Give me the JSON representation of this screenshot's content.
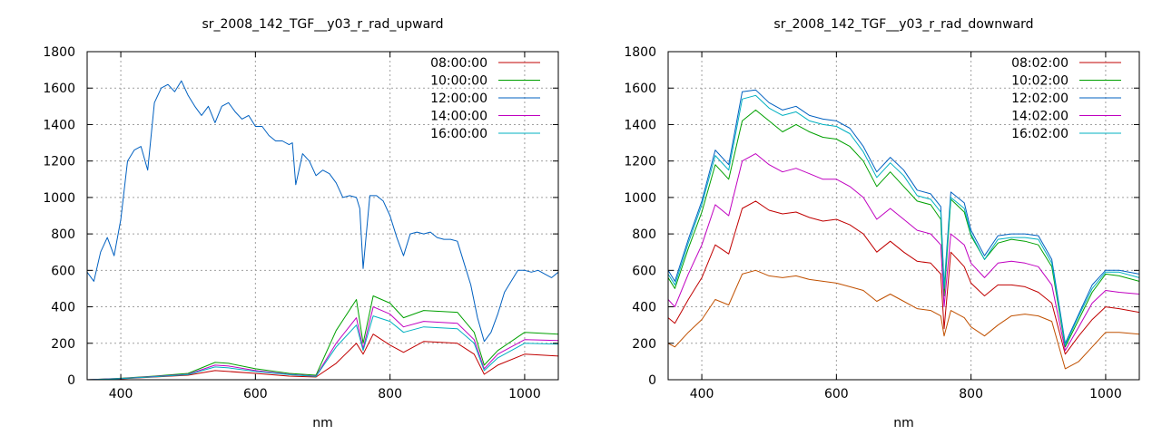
{
  "colors": {
    "red": "#c00000",
    "green": "#00a000",
    "blue": "#0060c0",
    "magenta": "#c000c0",
    "cyan": "#00b0c0",
    "orange": "#c05000"
  },
  "chart_data": [
    {
      "type": "line",
      "title": "sr_2008_142_TGF__y03_r_rad_upward",
      "xlabel": "nm",
      "ylabel": "",
      "xlim": [
        350,
        1050
      ],
      "ylim": [
        0,
        1800
      ],
      "xticks": [
        400,
        600,
        800,
        1000
      ],
      "yticks": [
        0,
        200,
        400,
        600,
        800,
        1000,
        1200,
        1400,
        1600,
        1800
      ],
      "grid": true,
      "legend": "top-right",
      "series": [
        {
          "name": "08:00:00",
          "color": "#c00000",
          "x": [
            350,
            400,
            450,
            500,
            540,
            560,
            600,
            650,
            690,
            720,
            750,
            760,
            775,
            800,
            820,
            850,
            900,
            925,
            940,
            960,
            1000,
            1050
          ],
          "y": [
            0,
            5,
            15,
            25,
            50,
            45,
            35,
            20,
            15,
            90,
            200,
            140,
            250,
            190,
            150,
            210,
            200,
            140,
            30,
            80,
            140,
            130
          ]
        },
        {
          "name": "10:00:00",
          "color": "#00a000",
          "x": [
            350,
            400,
            450,
            500,
            540,
            560,
            600,
            650,
            690,
            720,
            750,
            760,
            775,
            800,
            820,
            850,
            900,
            925,
            940,
            960,
            1000,
            1050
          ],
          "y": [
            0,
            8,
            20,
            35,
            95,
            90,
            60,
            35,
            25,
            270,
            440,
            200,
            460,
            420,
            340,
            380,
            370,
            260,
            80,
            160,
            260,
            250
          ]
        },
        {
          "name": "12:00:00",
          "color": "#0060c0",
          "x": [
            350,
            360,
            370,
            380,
            390,
            400,
            410,
            420,
            430,
            440,
            450,
            460,
            470,
            480,
            490,
            500,
            510,
            520,
            530,
            540,
            550,
            560,
            570,
            580,
            590,
            600,
            610,
            620,
            630,
            640,
            650,
            655,
            660,
            670,
            680,
            690,
            700,
            710,
            720,
            730,
            740,
            750,
            755,
            760,
            770,
            780,
            790,
            800,
            810,
            820,
            830,
            840,
            850,
            860,
            870,
            880,
            890,
            900,
            910,
            920,
            930,
            940,
            950,
            960,
            970,
            980,
            990,
            1000,
            1010,
            1020,
            1030,
            1040,
            1050
          ],
          "y": [
            590,
            540,
            700,
            780,
            680,
            880,
            1200,
            1260,
            1280,
            1150,
            1520,
            1600,
            1620,
            1580,
            1640,
            1560,
            1500,
            1450,
            1500,
            1410,
            1500,
            1520,
            1470,
            1430,
            1450,
            1390,
            1390,
            1340,
            1310,
            1310,
            1290,
            1300,
            1070,
            1240,
            1200,
            1120,
            1150,
            1130,
            1080,
            1000,
            1010,
            1000,
            940,
            610,
            1010,
            1010,
            980,
            900,
            780,
            680,
            800,
            810,
            800,
            810,
            780,
            770,
            770,
            760,
            640,
            520,
            340,
            210,
            260,
            360,
            480,
            540,
            600,
            600,
            590,
            600,
            580,
            560,
            590
          ]
        },
        {
          "name": "14:00:00",
          "color": "#c000c0",
          "x": [
            350,
            400,
            450,
            500,
            540,
            560,
            600,
            650,
            690,
            720,
            750,
            760,
            775,
            800,
            820,
            850,
            900,
            925,
            940,
            960,
            1000,
            1050
          ],
          "y": [
            0,
            7,
            18,
            30,
            80,
            75,
            50,
            30,
            20,
            200,
            340,
            170,
            400,
            360,
            290,
            320,
            310,
            220,
            60,
            140,
            220,
            215
          ]
        },
        {
          "name": "16:00:00",
          "color": "#00b0c0",
          "x": [
            350,
            400,
            450,
            500,
            540,
            560,
            600,
            650,
            690,
            720,
            750,
            760,
            775,
            800,
            820,
            850,
            900,
            925,
            940,
            960,
            1000,
            1050
          ],
          "y": [
            0,
            6,
            16,
            28,
            70,
            65,
            45,
            28,
            18,
            180,
            300,
            160,
            350,
            320,
            260,
            290,
            280,
            200,
            50,
            120,
            200,
            195
          ]
        }
      ]
    },
    {
      "type": "line",
      "title": "sr_2008_142_TGF__y03_r_rad_downward",
      "xlabel": "nm",
      "ylabel": "",
      "xlim": [
        350,
        1050
      ],
      "ylim": [
        0,
        1800
      ],
      "xticks": [
        400,
        600,
        800,
        1000
      ],
      "yticks": [
        0,
        200,
        400,
        600,
        800,
        1000,
        1200,
        1400,
        1600,
        1800
      ],
      "grid": true,
      "legend": "top-right",
      "series": [
        {
          "name": "08:02:00",
          "color": "#c00000",
          "x": [
            350,
            360,
            380,
            400,
            420,
            440,
            460,
            480,
            500,
            520,
            540,
            560,
            580,
            600,
            620,
            640,
            660,
            680,
            700,
            720,
            740,
            755,
            760,
            770,
            790,
            800,
            820,
            840,
            860,
            880,
            900,
            920,
            940,
            960,
            980,
            1000,
            1020,
            1050
          ],
          "y": [
            340,
            310,
            440,
            560,
            740,
            690,
            940,
            980,
            930,
            910,
            920,
            890,
            870,
            880,
            850,
            800,
            700,
            760,
            700,
            650,
            640,
            580,
            280,
            700,
            620,
            530,
            460,
            520,
            520,
            510,
            480,
            420,
            140,
            240,
            330,
            400,
            390,
            370
          ]
        },
        {
          "name": "10:02:00",
          "color": "#00a000",
          "x": [
            350,
            360,
            380,
            400,
            420,
            440,
            460,
            480,
            500,
            520,
            540,
            560,
            580,
            600,
            620,
            640,
            660,
            680,
            700,
            720,
            740,
            755,
            760,
            770,
            790,
            800,
            820,
            840,
            860,
            880,
            900,
            920,
            940,
            960,
            980,
            1000,
            1020,
            1050
          ],
          "y": [
            560,
            500,
            720,
            920,
            1180,
            1100,
            1420,
            1480,
            1420,
            1360,
            1400,
            1360,
            1330,
            1320,
            1280,
            1200,
            1060,
            1140,
            1060,
            980,
            960,
            880,
            460,
            990,
            920,
            790,
            660,
            750,
            770,
            760,
            740,
            620,
            180,
            330,
            480,
            580,
            570,
            540
          ]
        },
        {
          "name": "12:02:00",
          "color": "#0060c0",
          "x": [
            350,
            360,
            380,
            400,
            420,
            440,
            460,
            480,
            500,
            520,
            540,
            560,
            580,
            600,
            620,
            640,
            660,
            680,
            700,
            720,
            740,
            755,
            760,
            770,
            790,
            800,
            820,
            840,
            860,
            880,
            900,
            920,
            940,
            960,
            980,
            1000,
            1020,
            1050
          ],
          "y": [
            600,
            540,
            770,
            980,
            1260,
            1180,
            1580,
            1590,
            1520,
            1480,
            1500,
            1450,
            1430,
            1420,
            1380,
            1280,
            1140,
            1220,
            1150,
            1040,
            1020,
            950,
            510,
            1030,
            970,
            820,
            680,
            790,
            800,
            800,
            790,
            660,
            200,
            360,
            520,
            600,
            600,
            580
          ]
        },
        {
          "name": "14:02:00",
          "color": "#c000c0",
          "x": [
            350,
            360,
            380,
            400,
            420,
            440,
            460,
            480,
            500,
            520,
            540,
            560,
            580,
            600,
            620,
            640,
            660,
            680,
            700,
            720,
            740,
            755,
            760,
            770,
            790,
            800,
            820,
            840,
            860,
            880,
            900,
            920,
            940,
            960,
            980,
            1000,
            1020,
            1050
          ],
          "y": [
            440,
            400,
            580,
            740,
            960,
            900,
            1200,
            1240,
            1180,
            1140,
            1160,
            1130,
            1100,
            1100,
            1060,
            1000,
            880,
            940,
            880,
            820,
            800,
            740,
            400,
            800,
            740,
            640,
            560,
            640,
            650,
            640,
            620,
            520,
            160,
            290,
            420,
            490,
            480,
            470
          ]
        },
        {
          "name": "16:02:00",
          "color": "#00b0c0",
          "x": [
            350,
            360,
            380,
            400,
            420,
            440,
            460,
            480,
            500,
            520,
            540,
            560,
            580,
            600,
            620,
            640,
            660,
            680,
            700,
            720,
            740,
            755,
            760,
            770,
            790,
            800,
            820,
            840,
            860,
            880,
            900,
            920,
            940,
            960,
            980,
            1000,
            1020,
            1050
          ],
          "y": [
            580,
            520,
            750,
            960,
            1230,
            1150,
            1540,
            1560,
            1490,
            1450,
            1470,
            1420,
            1400,
            1390,
            1350,
            1250,
            1110,
            1190,
            1120,
            1010,
            990,
            920,
            500,
            1000,
            940,
            800,
            660,
            770,
            780,
            780,
            770,
            640,
            190,
            350,
            500,
            590,
            590,
            560
          ]
        },
        {
          "name": "",
          "color": "#c05000",
          "x": [
            350,
            360,
            380,
            400,
            420,
            440,
            460,
            480,
            500,
            520,
            540,
            560,
            580,
            600,
            620,
            640,
            660,
            680,
            700,
            720,
            740,
            755,
            760,
            770,
            790,
            800,
            820,
            840,
            860,
            880,
            900,
            920,
            940,
            960,
            980,
            1000,
            1020,
            1050
          ],
          "y": [
            200,
            180,
            260,
            330,
            440,
            410,
            580,
            600,
            570,
            560,
            570,
            550,
            540,
            530,
            510,
            490,
            430,
            470,
            430,
            390,
            380,
            350,
            240,
            380,
            340,
            290,
            240,
            300,
            350,
            360,
            350,
            320,
            60,
            100,
            180,
            260,
            260,
            250
          ]
        }
      ]
    }
  ]
}
